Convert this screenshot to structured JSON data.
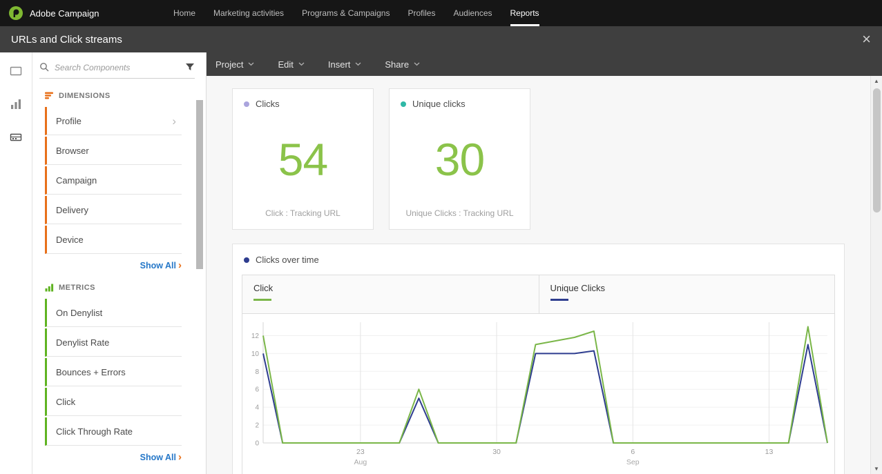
{
  "topnav": {
    "brand": "Adobe Campaign",
    "items": [
      "Home",
      "Marketing activities",
      "Programs &amp; Campaigns",
      "Profiles",
      "Audiences",
      "Reports"
    ],
    "items_plain": [
      "Home",
      "Marketing activities",
      "Programs & Campaigns",
      "Profiles",
      "Audiences",
      "Reports"
    ],
    "active_item": "Reports"
  },
  "titlebar": {
    "title": "URLs and Click streams",
    "close_label": "×"
  },
  "toolbar": {
    "menus": [
      "Project",
      "Edit",
      "Insert",
      "Share"
    ]
  },
  "sidebar": {
    "search_placeholder": "Search Components",
    "dimensions": {
      "header": "DIMENSIONS",
      "accent_color": "#e8701a",
      "items": [
        "Profile",
        "Browser",
        "Campaign",
        "Delivery",
        "Device"
      ],
      "show_all_label": "Show All",
      "show_all_arrow": "›"
    },
    "metrics": {
      "header": "METRICS",
      "accent_color": "#5fb321",
      "items": [
        "On Denylist",
        "Denylist Rate",
        "Bounces + Errors",
        "Click",
        "Click Through Rate"
      ],
      "show_all_label": "Show All",
      "show_all_arrow": "›"
    },
    "profile_chevron": "›"
  },
  "cards": [
    {
      "label": "Clicks",
      "value": "54",
      "caption": "Click : Tracking URL",
      "bullet_color": "#aaa4dd",
      "value_color": "#8bc34a"
    },
    {
      "label": "Unique clicks",
      "value": "30",
      "caption": "Unique Clicks : Tracking URL",
      "bullet_color": "#2fb8a6",
      "value_color": "#8bc34a"
    }
  ],
  "chart_panel": {
    "title": "Clicks over time",
    "bullet_color": "#2e3d8f"
  },
  "chart_data": {
    "type": "line",
    "title": "Clicks over time",
    "legend": [
      {
        "label": "Click",
        "color": "#7ab648"
      },
      {
        "label": "Unique Clicks",
        "color": "#2e3d8f"
      }
    ],
    "legend_position": "top tabs",
    "grid": true,
    "x_axis": {
      "unit": "days",
      "range": [
        0,
        29
      ],
      "ticks": [
        {
          "pos": 5,
          "label": "23",
          "sublabel": "Aug"
        },
        {
          "pos": 12,
          "label": "30",
          "sublabel": ""
        },
        {
          "pos": 19,
          "label": "6",
          "sublabel": "Sep"
        },
        {
          "pos": 26,
          "label": "13",
          "sublabel": ""
        }
      ]
    },
    "y_axis": {
      "ticks": [
        0,
        2,
        4,
        6,
        8,
        10,
        12
      ],
      "lim": [
        0,
        13.5
      ]
    },
    "series": [
      {
        "name": "Click",
        "color": "#7ab648",
        "points": [
          [
            0,
            12
          ],
          [
            1,
            0
          ],
          [
            7,
            0
          ],
          [
            8,
            6
          ],
          [
            9,
            0
          ],
          [
            13,
            0
          ],
          [
            14,
            11
          ],
          [
            16,
            11.8
          ],
          [
            17,
            12.5
          ],
          [
            18,
            0
          ],
          [
            27,
            0
          ],
          [
            28,
            13
          ],
          [
            29,
            0
          ]
        ]
      },
      {
        "name": "Unique Clicks",
        "color": "#2e3d8f",
        "points": [
          [
            0,
            10
          ],
          [
            1,
            0
          ],
          [
            7,
            0
          ],
          [
            8,
            5
          ],
          [
            9,
            0
          ],
          [
            13,
            0
          ],
          [
            14,
            10
          ],
          [
            16,
            10
          ],
          [
            17,
            10.3
          ],
          [
            18,
            0
          ],
          [
            27,
            0
          ],
          [
            28,
            11
          ],
          [
            29,
            0
          ]
        ]
      }
    ]
  }
}
